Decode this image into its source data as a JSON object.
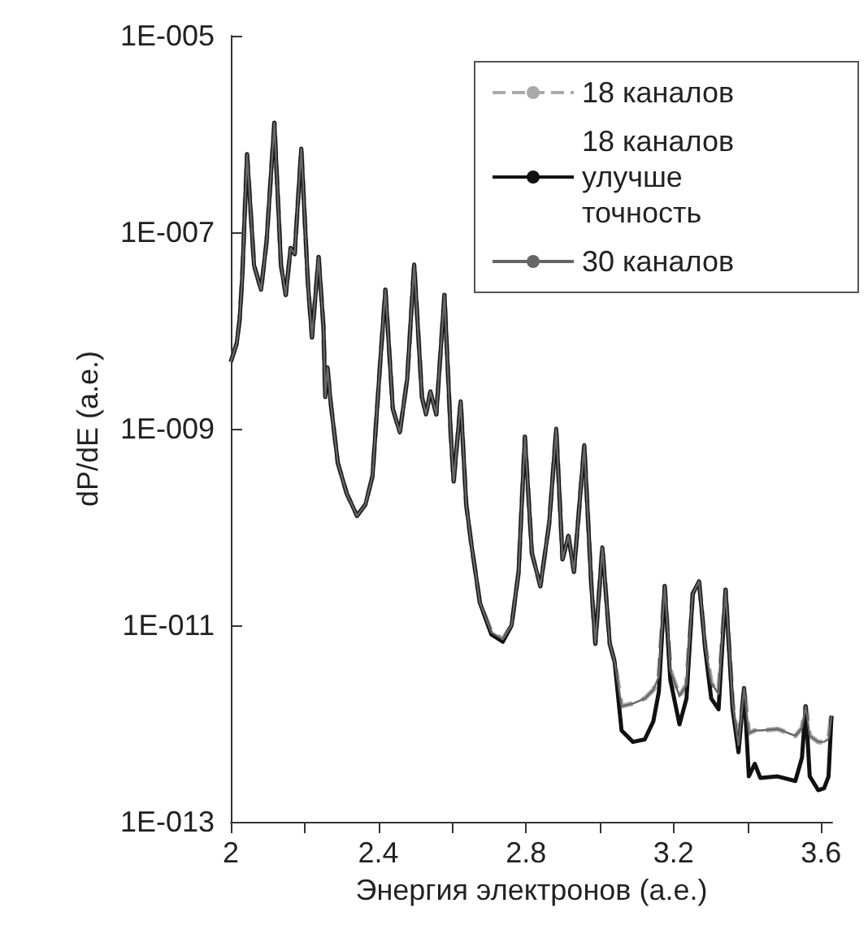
{
  "chart_data": {
    "type": "line",
    "xlabel": "Энергия электронов (а.е.)",
    "ylabel": "dP/dE (а.е.)",
    "log": "y",
    "grid": false,
    "legend": "top right",
    "marker": "none",
    "xlim": [
      2,
      3.63
    ],
    "xticks": [
      2,
      {
        "value": 2.2,
        "label": null
      },
      2.4,
      {
        "value": 2.6,
        "label": null
      },
      2.8,
      {
        "value": 3.0,
        "label": null
      },
      3.2,
      {
        "value": 3.4,
        "label": null
      },
      3.6
    ],
    "ylim": [
      1e-13,
      1e-05
    ],
    "yticks": [
      {
        "value": 1e-13,
        "label": "1E-013"
      },
      {
        "value": 1e-11,
        "label": "1E-011"
      },
      {
        "value": 1e-09,
        "label": "1E-009"
      },
      {
        "value": 1e-07,
        "label": "1E-007"
      },
      {
        "value": 1e-05,
        "label": "1E-005"
      }
    ],
    "x": [
      2.0,
      2.016,
      2.024,
      2.031,
      2.044,
      2.063,
      2.082,
      2.097,
      2.118,
      2.136,
      2.149,
      2.162,
      2.173,
      2.191,
      2.209,
      2.22,
      2.238,
      2.251,
      2.256,
      2.262,
      2.271,
      2.29,
      2.314,
      2.342,
      2.365,
      2.384,
      2.405,
      2.419,
      2.439,
      2.458,
      2.478,
      2.497,
      2.518,
      2.529,
      2.541,
      2.557,
      2.579,
      2.596,
      2.604,
      2.623,
      2.638,
      2.651,
      2.675,
      2.706,
      2.737,
      2.761,
      2.78,
      2.797,
      2.816,
      2.839,
      2.863,
      2.882,
      2.899,
      2.915,
      2.93,
      2.958,
      2.977,
      2.988,
      3.007,
      3.027,
      3.04,
      3.059,
      3.09,
      3.122,
      3.145,
      3.16,
      3.176,
      3.191,
      3.216,
      3.235,
      3.252,
      3.269,
      3.286,
      3.302,
      3.322,
      3.341,
      3.36,
      3.376,
      3.391,
      3.404,
      3.42,
      3.435,
      3.482,
      3.53,
      3.548,
      3.558,
      3.569,
      3.592,
      3.608,
      3.62,
      3.628
    ],
    "series": [
      {
        "name": "18 каналов",
        "color": "#aaaaaa",
        "line_style": "dashed",
        "values": [
          4.8e-09,
          7.4e-09,
          1.3e-08,
          3.5e-08,
          6.2e-07,
          4.6e-08,
          2.6e-08,
          8.1e-08,
          1.3e-06,
          4.6e-08,
          2.3e-08,
          6.9e-08,
          6e-08,
          7.1e-07,
          3e-08,
          8.5e-09,
          5.6e-08,
          1.1e-08,
          2.1e-09,
          4.2e-09,
          1.8e-09,
          4.5e-10,
          2.2e-10,
          1.3e-10,
          1.7e-10,
          3.3e-10,
          4.8e-09,
          2.6e-08,
          1.6e-09,
          9.2e-10,
          3.2e-09,
          4.7e-08,
          2.1e-09,
          1.4e-09,
          2.4e-09,
          1.4e-09,
          2.3e-08,
          8.9e-10,
          2.9e-10,
          1.9e-09,
          1.7e-10,
          7.1e-11,
          1.7e-11,
          8.5e-12,
          7.2e-12,
          1e-11,
          3.5e-11,
          8.3e-10,
          5.4e-11,
          2.5e-11,
          1.1e-10,
          1e-09,
          4.7e-11,
          8.1e-11,
          3.5e-11,
          6.8e-10,
          2.6e-11,
          6.5e-12,
          6.2e-11,
          6.5e-12,
          4.3e-12,
          1.5e-12,
          1.6e-12,
          1.8e-12,
          2.2e-12,
          3e-12,
          2.5e-11,
          3.5e-12,
          1.9e-12,
          2.5e-12,
          2.1e-11,
          2.8e-11,
          6e-12,
          2.6e-12,
          2e-12,
          2.3e-11,
          1.6e-12,
          6e-13,
          2.3e-12,
          8e-13,
          8.5e-13,
          8.5e-13,
          8.8e-13,
          7.5e-13,
          9e-13,
          1.5e-12,
          7.5e-13,
          6.5e-13,
          6.5e-13,
          7e-13,
          1.2e-12
        ]
      },
      {
        "name": "18 каналов улучше точность",
        "color": "#111111",
        "line_style": "solid",
        "values": [
          4.8e-09,
          7.4e-09,
          1.3e-08,
          3.5e-08,
          6.2e-07,
          4.6e-08,
          2.6e-08,
          8.1e-08,
          1.3e-06,
          4.6e-08,
          2.3e-08,
          6.9e-08,
          6e-08,
          7.1e-07,
          3e-08,
          8.5e-09,
          5.6e-08,
          1.1e-08,
          2.1e-09,
          4.2e-09,
          1.8e-09,
          4.5e-10,
          2.2e-10,
          1.3e-10,
          1.7e-10,
          3.3e-10,
          4.8e-09,
          2.6e-08,
          1.6e-09,
          9.2e-10,
          3.2e-09,
          4.7e-08,
          2.1e-09,
          1.4e-09,
          2.4e-09,
          1.4e-09,
          2.3e-08,
          8.9e-10,
          2.9e-10,
          1.9e-09,
          1.7e-10,
          7.1e-11,
          1.7e-11,
          8.1e-12,
          6.8e-12,
          1e-11,
          3.5e-11,
          8.3e-10,
          5.4e-11,
          2.5e-11,
          1.1e-10,
          1e-09,
          4.7e-11,
          8.1e-11,
          3.5e-11,
          6.8e-10,
          2.6e-11,
          6.5e-12,
          6.2e-11,
          6.5e-12,
          4.3e-12,
          8.5e-13,
          6.5e-13,
          6.9e-13,
          1.05e-12,
          2.1e-12,
          2.5e-11,
          2.8e-12,
          9.8e-13,
          1.8e-12,
          2.1e-11,
          2.8e-11,
          5.6e-12,
          1.8e-12,
          1.4e-12,
          2.3e-11,
          1.4e-12,
          5.1e-13,
          2.3e-12,
          2.9e-13,
          3.9e-13,
          2.8e-13,
          2.9e-13,
          2.6e-13,
          4.5e-13,
          1.5e-12,
          2.9e-13,
          2.1e-13,
          2.2e-13,
          2.9e-13,
          1.2e-12
        ]
      },
      {
        "name": "30 каналов",
        "color": "#666666",
        "line_style": "solid",
        "values": [
          4.8e-09,
          7.4e-09,
          1.3e-08,
          3.5e-08,
          6.2e-07,
          4.6e-08,
          2.6e-08,
          8.1e-08,
          1.3e-06,
          4.6e-08,
          2.3e-08,
          6.9e-08,
          6e-08,
          7.1e-07,
          3e-08,
          8.5e-09,
          5.6e-08,
          1.1e-08,
          2.1e-09,
          4.2e-09,
          1.8e-09,
          4.5e-10,
          2.2e-10,
          1.3e-10,
          1.7e-10,
          3.3e-10,
          4.8e-09,
          2.6e-08,
          1.6e-09,
          9.2e-10,
          3.2e-09,
          4.7e-08,
          2.1e-09,
          1.4e-09,
          2.4e-09,
          1.4e-09,
          2.3e-08,
          8.9e-10,
          2.9e-10,
          1.9e-09,
          1.7e-10,
          7.1e-11,
          1.7e-11,
          8.5e-12,
          7.2e-12,
          1e-11,
          3.5e-11,
          8.3e-10,
          5.4e-11,
          2.5e-11,
          1.1e-10,
          1e-09,
          4.7e-11,
          8.1e-11,
          3.5e-11,
          6.8e-10,
          2.6e-11,
          6.5e-12,
          6.2e-11,
          6.5e-12,
          4.3e-12,
          1.5e-12,
          1.6e-12,
          1.8e-12,
          2.2e-12,
          3e-12,
          2.5e-11,
          3.5e-12,
          1.9e-12,
          2.5e-12,
          2.1e-11,
          2.8e-11,
          6e-12,
          2.6e-12,
          2e-12,
          2.3e-11,
          1.6e-12,
          6e-13,
          2.3e-12,
          8e-13,
          8.5e-13,
          8.5e-13,
          8.8e-13,
          7.5e-13,
          9e-13,
          1.5e-12,
          7.5e-13,
          6.5e-13,
          6.5e-13,
          7e-13,
          1.2e-12
        ]
      }
    ]
  }
}
